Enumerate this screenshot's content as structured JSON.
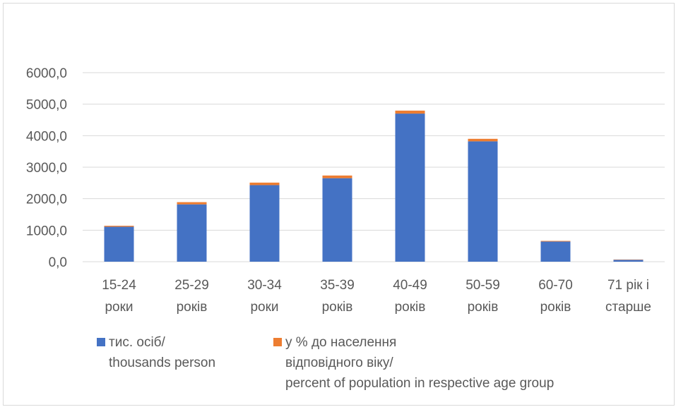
{
  "chart_data": {
    "type": "stacked-bar",
    "categories": [
      [
        "15-24",
        "роки"
      ],
      [
        "25-29",
        "років"
      ],
      [
        "30-34",
        "роки"
      ],
      [
        "35-39",
        "років"
      ],
      [
        "40-49",
        "років"
      ],
      [
        "50-59",
        "років"
      ],
      [
        "60-70",
        "років"
      ],
      [
        "71 рік і",
        "старше"
      ]
    ],
    "series": [
      {
        "name": [
          "тис. осіб/",
          "thousands person"
        ],
        "color": "#4472C4",
        "values": [
          1110,
          1820,
          2430,
          2650,
          4700,
          3820,
          640,
          60
        ]
      },
      {
        "name": [
          "у % до  населення",
          "відповідного віку/",
          "percent of population in respective age group"
        ],
        "color": "#ED7D31",
        "values": [
          30,
          70,
          80,
          85,
          95,
          80,
          20,
          10
        ]
      }
    ],
    "yticks": [
      "0,0",
      "1000,0",
      "2000,0",
      "3000,0",
      "4000,0",
      "5000,0",
      "6000,0"
    ],
    "ylim": [
      0,
      6000
    ],
    "grid": true,
    "legend": "bottom"
  }
}
